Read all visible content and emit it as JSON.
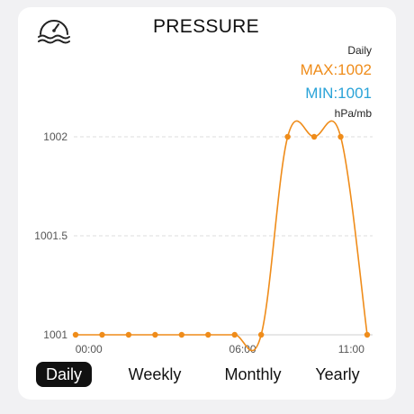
{
  "header": {
    "title": "PRESSURE",
    "icon": "barometer-gauge-icon"
  },
  "summary": {
    "period": "Daily",
    "max_label": "MAX:1002",
    "min_label": "MIN:1001",
    "unit": "hPa/mb"
  },
  "colors": {
    "line": "#ef8c1a",
    "max": "#ef8c1a",
    "min": "#2aa3d8",
    "active_tab_bg": "#111111"
  },
  "chart_data": {
    "type": "line",
    "x_ticks": [
      "00:00",
      "06:00",
      "11:00"
    ],
    "y_ticks": [
      "1001",
      "1001.5",
      "1002"
    ],
    "ylim": [
      1001,
      1002
    ],
    "grid": true,
    "series": [
      {
        "values": [
          1001,
          1001,
          1001,
          1001,
          1001,
          1001,
          1001,
          1001,
          1002,
          1002,
          1002,
          1001
        ]
      }
    ]
  },
  "tabs": [
    {
      "label": "Daily",
      "active": true
    },
    {
      "label": "Weekly",
      "active": false
    },
    {
      "label": "Monthly",
      "active": false
    },
    {
      "label": "Yearly",
      "active": false
    }
  ]
}
